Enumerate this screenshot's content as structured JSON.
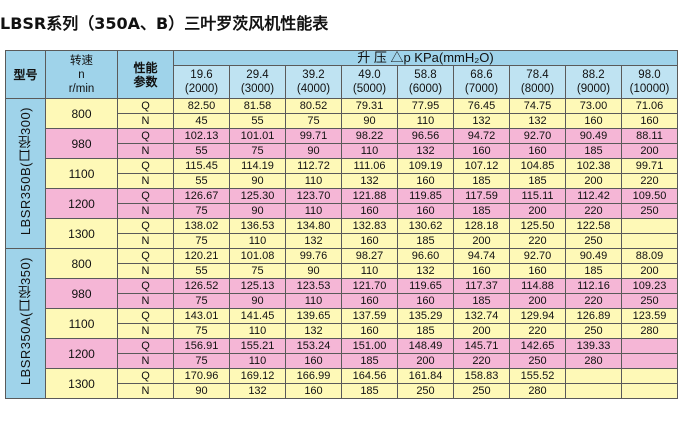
{
  "title": "LBSR系列（350A、B）三叶罗茨风机性能表",
  "header": {
    "model_label": "型号",
    "speed_label_1": "转速",
    "speed_label_2": "n",
    "speed_label_3": "r/min",
    "perf_label_1": "性能",
    "perf_label_2": "参数",
    "pressure_label": "升 压 △p KPa(mmH₂O)",
    "pressures": [
      {
        "kpa": "19.6",
        "mmh2o": "(2000)"
      },
      {
        "kpa": "29.4",
        "mmh2o": "(3000)"
      },
      {
        "kpa": "39.2",
        "mmh2o": "(4000)"
      },
      {
        "kpa": "49.0",
        "mmh2o": "(5000)"
      },
      {
        "kpa": "58.8",
        "mmh2o": "(6000)"
      },
      {
        "kpa": "68.6",
        "mmh2o": "(7000)"
      },
      {
        "kpa": "78.4",
        "mmh2o": "(8000)"
      },
      {
        "kpa": "88.2",
        "mmh2o": "(9000)"
      },
      {
        "kpa": "98.0",
        "mmh2o": "(10000)"
      }
    ]
  },
  "models": [
    {
      "name": "LBSR350B(口径300)",
      "speeds": [
        {
          "n": "800",
          "Q": [
            "82.50",
            "81.58",
            "80.52",
            "79.31",
            "77.95",
            "76.45",
            "74.75",
            "73.00",
            "71.06"
          ],
          "N": [
            "45",
            "55",
            "75",
            "90",
            "110",
            "132",
            "132",
            "160",
            "160"
          ]
        },
        {
          "n": "980",
          "Q": [
            "102.13",
            "101.01",
            "99.71",
            "98.22",
            "96.56",
            "94.72",
            "92.70",
            "90.49",
            "88.11"
          ],
          "N": [
            "55",
            "75",
            "90",
            "110",
            "132",
            "160",
            "160",
            "185",
            "200"
          ]
        },
        {
          "n": "1100",
          "Q": [
            "115.45",
            "114.19",
            "112.72",
            "111.06",
            "109.19",
            "107.12",
            "104.85",
            "102.38",
            "99.71"
          ],
          "N": [
            "55",
            "90",
            "110",
            "132",
            "160",
            "185",
            "185",
            "200",
            "220"
          ]
        },
        {
          "n": "1200",
          "Q": [
            "126.67",
            "125.30",
            "123.70",
            "121.88",
            "119.85",
            "117.59",
            "115.11",
            "112.42",
            "109.50"
          ],
          "N": [
            "75",
            "90",
            "110",
            "160",
            "160",
            "185",
            "200",
            "220",
            "250"
          ]
        },
        {
          "n": "1300",
          "Q": [
            "138.02",
            "136.53",
            "134.80",
            "132.83",
            "130.62",
            "128.18",
            "125.50",
            "122.58",
            ""
          ],
          "N": [
            "75",
            "110",
            "132",
            "160",
            "185",
            "200",
            "220",
            "250",
            ""
          ]
        }
      ]
    },
    {
      "name": "LBSR350A(口径350)",
      "speeds": [
        {
          "n": "800",
          "Q": [
            "120.21",
            "101.08",
            "99.76",
            "98.27",
            "96.60",
            "94.74",
            "92.70",
            "90.49",
            "88.09"
          ],
          "N": [
            "55",
            "75",
            "90",
            "110",
            "132",
            "160",
            "160",
            "185",
            "200"
          ]
        },
        {
          "n": "980",
          "Q": [
            "126.52",
            "125.13",
            "123.53",
            "121.70",
            "119.65",
            "117.37",
            "114.88",
            "112.16",
            "109.23"
          ],
          "N": [
            "75",
            "90",
            "110",
            "160",
            "160",
            "185",
            "200",
            "220",
            "250"
          ]
        },
        {
          "n": "1100",
          "Q": [
            "143.01",
            "141.45",
            "139.65",
            "137.59",
            "135.29",
            "132.74",
            "129.94",
            "126.89",
            "123.59"
          ],
          "N": [
            "75",
            "110",
            "132",
            "160",
            "185",
            "200",
            "220",
            "250",
            "280"
          ]
        },
        {
          "n": "1200",
          "Q": [
            "156.91",
            "155.21",
            "153.24",
            "151.00",
            "148.49",
            "145.71",
            "142.65",
            "139.33",
            ""
          ],
          "N": [
            "75",
            "110",
            "160",
            "185",
            "200",
            "220",
            "250",
            "280",
            ""
          ]
        },
        {
          "n": "1300",
          "Q": [
            "170.96",
            "169.12",
            "166.99",
            "164.56",
            "161.84",
            "158.83",
            "155.52",
            "",
            ""
          ],
          "N": [
            "90",
            "132",
            "160",
            "185",
            "250",
            "250",
            "280",
            "",
            ""
          ]
        }
      ]
    }
  ],
  "row_labels": {
    "q": "Q",
    "n": "N"
  },
  "colors": {
    "header_blue": "#9fd3ea",
    "yellow": "#fef9b7",
    "pink": "#f5b6d6"
  }
}
